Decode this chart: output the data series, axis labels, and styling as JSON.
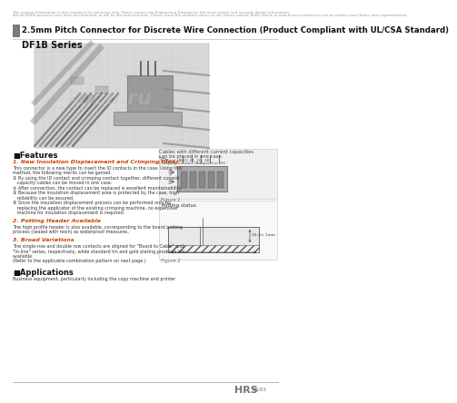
{
  "bg_color": "#ffffff",
  "disclaimer1": "The product information in this catalog is for reference only. Please request the Engineering Drawing for the most current and accurate design information.",
  "disclaimer2": "All non-RoHS products have been discontinued, or will be discontinued soon. Please check the products status on the Hirose website RoHS search at www.hirose-connectors.com or contact your Hirose sales representative.",
  "header_bar_color": "#7a7a7a",
  "title_text": "2.5mm Pitch Connector for Discrete Wire Connection (Product Compliant with UL/CSA Standard)",
  "series_label": "DF1B Series",
  "features_title": "■Features",
  "f1_title": "1. New Insulation Displacement and Crimping Ideas",
  "f1_title_color": "#cc4400",
  "f1_lines": [
    "This connector is a new type to insert the ID contacts in the case. Using this",
    "method, the following merits can be gained.",
    "① By using the ID contact and crimping contact together, different current",
    "   capacity cables can be moved in one case.",
    "② After connection, the contact can be replaced is excellent maintainability.",
    "③ Because the insulation displacement area is protected by the case, high",
    "   reliability can be assured.",
    "④ Since the insulation displacement process can be performed only by",
    "   replacing the applicator of the existing crimping machine, no expensive",
    "   machine for insulation displacement is required."
  ],
  "f2_title": "2. Potting Header Available",
  "f2_title_color": "#cc4400",
  "f2_lines": [
    "The high profile header is also available, corresponding to the board potting",
    "process (sealed with resin) as waterproof measures."
  ],
  "f3_title": "3. Broad Variations",
  "f3_title_color": "#cc4400",
  "f3_lines": [
    "The single-row and double row contacts are aligned for \"Board to Cable\" and",
    "\"In-line\" series, respectively, while standard tin and gold plating products are",
    "available.",
    "(Refer to the applicable combination pattern on next page.)"
  ],
  "app_title": "■Applications",
  "app_body": "Business equipment, particularly including the copy machine and printer",
  "right_cap1": "Cables with different current capacities",
  "right_cap2": "can be placed in one case.",
  "right_sub1": "Terminal (AWG 24, 26, 28)",
  "right_sub2": "Crimping contact (Adapted to 60)",
  "fig1_cap": "Figure 1",
  "fig2_cap": "Figure 2",
  "fig2_title": "Potting status",
  "fig2_dim": "10-3× 1mm",
  "watermark": "knzu.ru",
  "footer_page": "B183"
}
